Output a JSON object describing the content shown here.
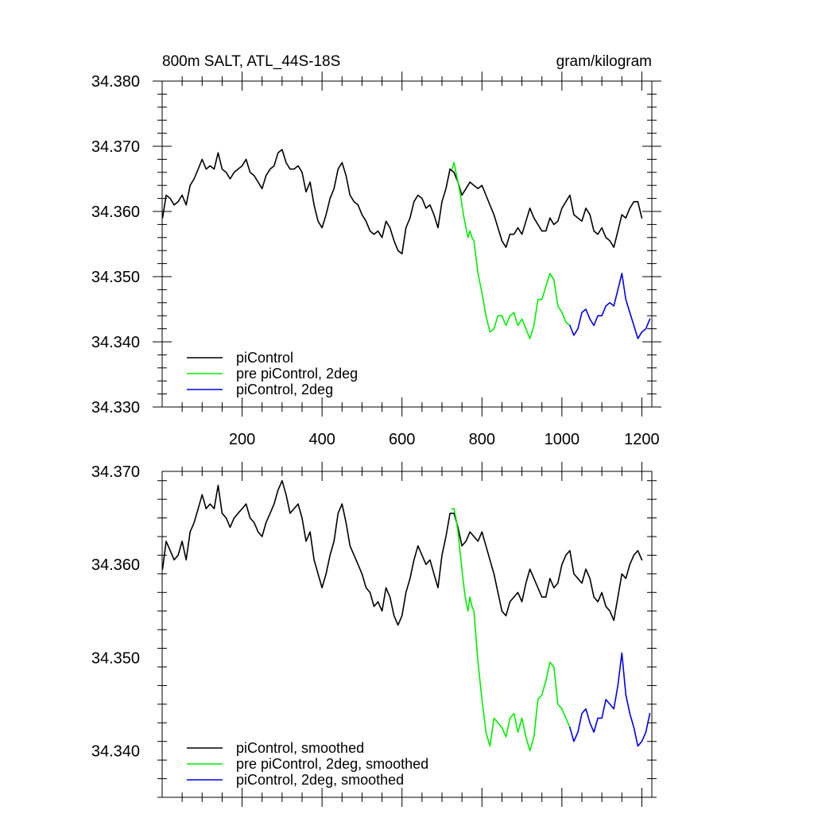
{
  "chart_data": [
    {
      "type": "line",
      "title": "800m SALT, ATL_44S-18S",
      "units": "gram/kilogram",
      "xlim": [
        0,
        1225
      ],
      "ylim": [
        34.33,
        34.38
      ],
      "x_ticks": [
        "200",
        "400",
        "600",
        "800",
        "1000",
        "1200"
      ],
      "y_ticks": [
        "34.330",
        "34.340",
        "34.350",
        "34.360",
        "34.370",
        "34.380"
      ],
      "legend_position": "bottom-left",
      "series": [
        {
          "name": "piControl",
          "color": "#000000",
          "x": [
            1,
            10,
            20,
            30,
            40,
            50,
            60,
            70,
            80,
            90,
            100,
            110,
            120,
            130,
            140,
            150,
            160,
            170,
            180,
            190,
            200,
            210,
            220,
            230,
            240,
            250,
            260,
            270,
            280,
            290,
            300,
            310,
            320,
            330,
            340,
            350,
            360,
            370,
            380,
            390,
            400,
            410,
            420,
            430,
            440,
            450,
            460,
            470,
            480,
            490,
            500,
            510,
            520,
            530,
            540,
            550,
            560,
            570,
            580,
            590,
            600,
            610,
            620,
            630,
            640,
            650,
            660,
            670,
            680,
            690,
            700,
            710,
            720,
            730,
            740,
            750,
            760,
            770,
            780,
            790,
            800,
            810,
            820,
            830,
            840,
            850,
            860,
            870,
            880,
            890,
            900,
            910,
            920,
            930,
            940,
            950,
            960,
            970,
            980,
            990,
            1000,
            1010,
            1020,
            1030,
            1040,
            1050,
            1060,
            1070,
            1080,
            1090,
            1100,
            1110,
            1120,
            1130,
            1140,
            1150,
            1160,
            1170,
            1180,
            1190,
            1200
          ],
          "values": [
            34.359,
            34.3625,
            34.362,
            34.361,
            34.3615,
            34.3625,
            34.361,
            34.364,
            34.365,
            34.3665,
            34.368,
            34.3665,
            34.367,
            34.3665,
            34.369,
            34.3665,
            34.366,
            34.365,
            34.366,
            34.3665,
            34.367,
            34.368,
            34.366,
            34.3655,
            34.3645,
            34.3635,
            34.3655,
            34.3665,
            34.367,
            34.369,
            34.3695,
            34.3675,
            34.3665,
            34.3665,
            34.367,
            34.366,
            34.363,
            34.3645,
            34.361,
            34.3585,
            34.3575,
            34.3595,
            34.362,
            34.3635,
            34.3665,
            34.3675,
            34.3655,
            34.3625,
            34.3615,
            34.361,
            34.3595,
            34.3585,
            34.357,
            34.3565,
            34.357,
            34.356,
            34.3585,
            34.3575,
            34.3555,
            34.354,
            34.3535,
            34.3575,
            34.359,
            34.3615,
            34.3625,
            34.362,
            34.3605,
            34.361,
            34.3595,
            34.3575,
            34.3615,
            34.3635,
            34.3665,
            34.366,
            34.3645,
            34.3625,
            34.3635,
            34.3645,
            34.364,
            34.3635,
            34.364,
            34.3625,
            34.361,
            34.3595,
            34.3575,
            34.3555,
            34.3545,
            34.3565,
            34.3565,
            34.3575,
            34.3565,
            34.3585,
            34.3605,
            34.359,
            34.358,
            34.357,
            34.357,
            34.359,
            34.358,
            34.3585,
            34.3605,
            34.3615,
            34.3625,
            34.3595,
            34.359,
            34.3585,
            34.3605,
            34.3595,
            34.357,
            34.3565,
            34.3575,
            34.356,
            34.3555,
            34.3545,
            34.357,
            34.3595,
            34.359,
            34.3605,
            34.3615,
            34.3615,
            34.359
          ]
        },
        {
          "name": "pre piControl, 2deg",
          "color": "#00ee00",
          "x": [
            725,
            730,
            735,
            740,
            745,
            750,
            755,
            760,
            765,
            770,
            775,
            780,
            790,
            800,
            810,
            820,
            830,
            840,
            850,
            860,
            870,
            880,
            890,
            900,
            910,
            920,
            930,
            940,
            950,
            960,
            970,
            980,
            990,
            1000,
            1010,
            1020
          ],
          "values": [
            34.3665,
            34.3675,
            34.366,
            34.3645,
            34.363,
            34.361,
            34.359,
            34.3575,
            34.356,
            34.357,
            34.356,
            34.3555,
            34.3505,
            34.3475,
            34.344,
            34.3415,
            34.342,
            34.344,
            34.344,
            34.3425,
            34.344,
            34.3445,
            34.3425,
            34.3435,
            34.342,
            34.3405,
            34.3425,
            34.3465,
            34.3465,
            34.3485,
            34.3505,
            34.3495,
            34.3455,
            34.3445,
            34.343,
            34.3425
          ]
        },
        {
          "name": "piControl, 2deg",
          "color": "#0000ee",
          "x": [
            1020,
            1030,
            1040,
            1050,
            1060,
            1070,
            1080,
            1090,
            1100,
            1110,
            1120,
            1130,
            1140,
            1150,
            1160,
            1170,
            1180,
            1190,
            1200,
            1210,
            1220
          ],
          "values": [
            34.3425,
            34.341,
            34.342,
            34.3445,
            34.345,
            34.3435,
            34.3425,
            34.344,
            34.344,
            34.3455,
            34.346,
            34.3455,
            34.348,
            34.3505,
            34.3465,
            34.3445,
            34.3425,
            34.3405,
            34.3415,
            34.342,
            34.3435
          ]
        }
      ]
    },
    {
      "type": "line",
      "xlim": [
        0,
        1225
      ],
      "ylim": [
        34.335,
        34.37
      ],
      "y_ticks": [
        "34.340",
        "34.350",
        "34.360",
        "34.370"
      ],
      "legend_position": "bottom-left",
      "series": [
        {
          "name": "piControl, smoothed",
          "color": "#000000",
          "x": [
            1,
            10,
            20,
            30,
            40,
            50,
            60,
            70,
            80,
            90,
            100,
            110,
            120,
            130,
            140,
            150,
            160,
            170,
            180,
            190,
            200,
            210,
            220,
            230,
            240,
            250,
            260,
            270,
            280,
            290,
            300,
            310,
            320,
            330,
            340,
            350,
            360,
            370,
            380,
            390,
            400,
            410,
            420,
            430,
            440,
            450,
            460,
            470,
            480,
            490,
            500,
            510,
            520,
            530,
            540,
            550,
            560,
            570,
            580,
            590,
            600,
            610,
            620,
            630,
            640,
            650,
            660,
            670,
            680,
            690,
            700,
            710,
            720,
            730,
            740,
            750,
            760,
            770,
            780,
            790,
            800,
            810,
            820,
            830,
            840,
            850,
            860,
            870,
            880,
            890,
            900,
            910,
            920,
            930,
            940,
            950,
            960,
            970,
            980,
            990,
            1000,
            1010,
            1020,
            1030,
            1040,
            1050,
            1060,
            1070,
            1080,
            1090,
            1100,
            1110,
            1120,
            1130,
            1140,
            1150,
            1160,
            1170,
            1180,
            1190,
            1200
          ],
          "values": [
            34.3595,
            34.3625,
            34.3615,
            34.3605,
            34.361,
            34.3625,
            34.3605,
            34.3635,
            34.3645,
            34.366,
            34.3675,
            34.366,
            34.3665,
            34.366,
            34.3685,
            34.3655,
            34.365,
            34.364,
            34.365,
            34.3655,
            34.366,
            34.3665,
            34.365,
            34.3645,
            34.3635,
            34.363,
            34.3645,
            34.3655,
            34.3665,
            34.368,
            34.369,
            34.3675,
            34.3655,
            34.366,
            34.3665,
            34.365,
            34.3625,
            34.3635,
            34.3605,
            34.359,
            34.3575,
            34.359,
            34.361,
            34.3625,
            34.3655,
            34.3665,
            34.3645,
            34.362,
            34.361,
            34.36,
            34.359,
            34.3575,
            34.357,
            34.3555,
            34.356,
            34.355,
            34.3575,
            34.3565,
            34.3545,
            34.3535,
            34.3545,
            34.357,
            34.3585,
            34.3605,
            34.362,
            34.361,
            34.36,
            34.3605,
            34.359,
            34.3575,
            34.361,
            34.363,
            34.3655,
            34.3655,
            34.364,
            34.362,
            34.3625,
            34.3635,
            34.363,
            34.3625,
            34.3635,
            34.362,
            34.3605,
            34.359,
            34.357,
            34.355,
            34.3545,
            34.356,
            34.3565,
            34.357,
            34.356,
            34.358,
            34.3595,
            34.3585,
            34.3575,
            34.3565,
            34.3565,
            34.3585,
            34.3575,
            34.358,
            34.36,
            34.361,
            34.3615,
            34.359,
            34.3585,
            34.358,
            34.3595,
            34.3585,
            34.3565,
            34.356,
            34.357,
            34.3555,
            34.355,
            34.354,
            34.3565,
            34.359,
            34.3585,
            34.36,
            34.361,
            34.3615,
            34.3605
          ]
        },
        {
          "name": "pre piControl, 2deg, smoothed",
          "color": "#00ee00",
          "x": [
            725,
            730,
            735,
            740,
            745,
            750,
            755,
            760,
            765,
            770,
            775,
            780,
            790,
            800,
            810,
            820,
            830,
            840,
            850,
            860,
            870,
            880,
            890,
            900,
            910,
            920,
            930,
            940,
            950,
            960,
            970,
            980,
            990,
            1000,
            1010,
            1020
          ],
          "values": [
            34.366,
            34.366,
            34.365,
            34.3635,
            34.3615,
            34.3595,
            34.3575,
            34.356,
            34.355,
            34.3565,
            34.3555,
            34.355,
            34.3495,
            34.3455,
            34.342,
            34.3405,
            34.3435,
            34.343,
            34.3425,
            34.3415,
            34.3435,
            34.344,
            34.342,
            34.3435,
            34.3415,
            34.34,
            34.3415,
            34.3455,
            34.346,
            34.3475,
            34.3495,
            34.349,
            34.345,
            34.3445,
            34.3435,
            34.3425
          ]
        },
        {
          "name": "piControl, 2deg, smoothed",
          "color": "#0000ee",
          "x": [
            1020,
            1030,
            1040,
            1050,
            1060,
            1070,
            1080,
            1090,
            1100,
            1110,
            1120,
            1130,
            1140,
            1150,
            1160,
            1170,
            1180,
            1190,
            1200,
            1210,
            1220
          ],
          "values": [
            34.3425,
            34.341,
            34.342,
            34.344,
            34.3445,
            34.343,
            34.342,
            34.3435,
            34.3435,
            34.3455,
            34.345,
            34.3445,
            34.347,
            34.3505,
            34.346,
            34.344,
            34.3425,
            34.3405,
            34.341,
            34.342,
            34.344
          ]
        }
      ]
    }
  ]
}
